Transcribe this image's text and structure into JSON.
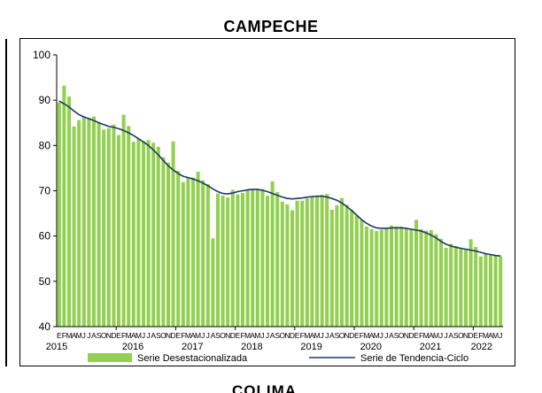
{
  "bottom_partial_text": "COLIMA",
  "chart_data": {
    "type": "bar",
    "title": "CAMPECHE",
    "xlabel": "",
    "ylabel": "",
    "ylim": [
      40,
      100
    ],
    "yticks": [
      40,
      50,
      60,
      70,
      80,
      90,
      100
    ],
    "grid": false,
    "legend_position": "bottom",
    "month_labels": [
      "E",
      "F",
      "M",
      "A",
      "M",
      "J",
      "J",
      "A",
      "S",
      "O",
      "N",
      "D"
    ],
    "years": [
      "2015",
      "2016",
      "2017",
      "2018",
      "2019",
      "2020",
      "2021",
      "2022"
    ],
    "months_last_year": 6,
    "colors": {
      "bar": "#92d050",
      "trend": "#1f3864",
      "axis": "#000000"
    },
    "series": [
      {
        "name": "Serie Desestacionalizada",
        "type": "bar",
        "values": [
          89.5,
          93.2,
          90.8,
          84.2,
          85.6,
          86.4,
          86.1,
          86.4,
          85.2,
          83.5,
          83.8,
          84.6,
          82.3,
          86.8,
          84.3,
          80.8,
          81.5,
          80.9,
          81.2,
          80.6,
          79.7,
          77.4,
          76.2,
          80.9,
          74.4,
          71.9,
          73.0,
          72.9,
          74.2,
          72.3,
          71.5,
          59.5,
          69.4,
          68.9,
          68.5,
          70.2,
          69.2,
          69.5,
          70.3,
          70.2,
          70.2,
          70.4,
          68.9,
          72.1,
          69.7,
          67.6,
          67.0,
          65.7,
          67.8,
          67.8,
          68.3,
          68.6,
          68.8,
          69.1,
          69.3,
          65.8,
          66.8,
          68.4,
          66.9,
          65.8,
          64.5,
          63.6,
          62.1,
          61.5,
          61.1,
          61.4,
          61.6,
          62.3,
          62.1,
          62.1,
          61.8,
          61.6,
          63.6,
          61.5,
          61.2,
          61.3,
          60.4,
          59.4,
          57.4,
          58.3,
          57.8,
          57.4,
          57.1,
          59.3,
          57.6,
          55.5,
          56.1,
          56.0,
          55.8,
          55.5
        ]
      },
      {
        "name": "Serie de Tendencia-Ciclo",
        "type": "line",
        "values": [
          89.8,
          89.2,
          88.5,
          87.6,
          86.8,
          86.3,
          85.9,
          85.5,
          85.0,
          84.6,
          84.2,
          84.0,
          83.7,
          83.3,
          82.8,
          82.2,
          81.5,
          80.8,
          80.0,
          79.0,
          77.9,
          76.7,
          75.5,
          74.6,
          73.8,
          73.2,
          72.9,
          72.6,
          72.2,
          71.7,
          71.1,
          70.4,
          69.8,
          69.4,
          69.3,
          69.5,
          69.8,
          70.0,
          70.2,
          70.3,
          70.3,
          70.1,
          69.8,
          69.4,
          69.0,
          68.6,
          68.3,
          68.2,
          68.3,
          68.4,
          68.6,
          68.7,
          68.8,
          68.8,
          68.6,
          68.3,
          67.9,
          67.3,
          66.5,
          65.6,
          64.6,
          63.6,
          62.8,
          62.2,
          61.8,
          61.7,
          61.7,
          61.8,
          61.8,
          61.8,
          61.7,
          61.5,
          61.3,
          61.1,
          60.7,
          60.2,
          59.6,
          58.8,
          58.2,
          57.8,
          57.5,
          57.3,
          57.1,
          56.9,
          56.7,
          56.4,
          56.1,
          55.9,
          55.7,
          55.6
        ]
      }
    ]
  }
}
